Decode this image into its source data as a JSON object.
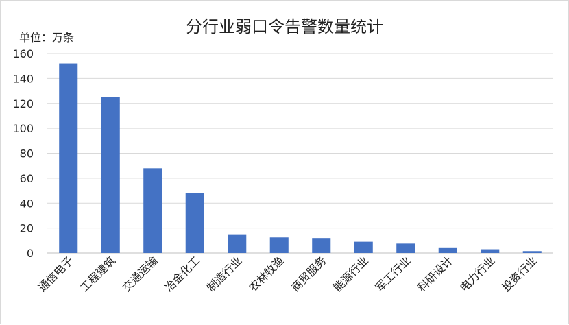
{
  "chart_data": {
    "type": "bar",
    "title": "分行业弱口令告警数量统计",
    "unit_label": "单位：万条",
    "xlabel": "",
    "ylabel": "",
    "ylim": [
      0,
      160
    ],
    "yticks": [
      0,
      20,
      40,
      60,
      80,
      100,
      120,
      140,
      160
    ],
    "grid": true,
    "legend": "none",
    "bar_color": "#4472C4",
    "categories": [
      "通信电子",
      "工程建筑",
      "交通运输",
      "冶金化工",
      "制造行业",
      "农林牧渔",
      "商贸服务",
      "能源行业",
      "军工行业",
      "科研设计",
      "电力行业",
      "投资行业"
    ],
    "values": [
      152,
      125,
      68,
      48,
      14.5,
      12.5,
      12,
      9,
      7.5,
      4.5,
      3,
      1.5
    ]
  }
}
